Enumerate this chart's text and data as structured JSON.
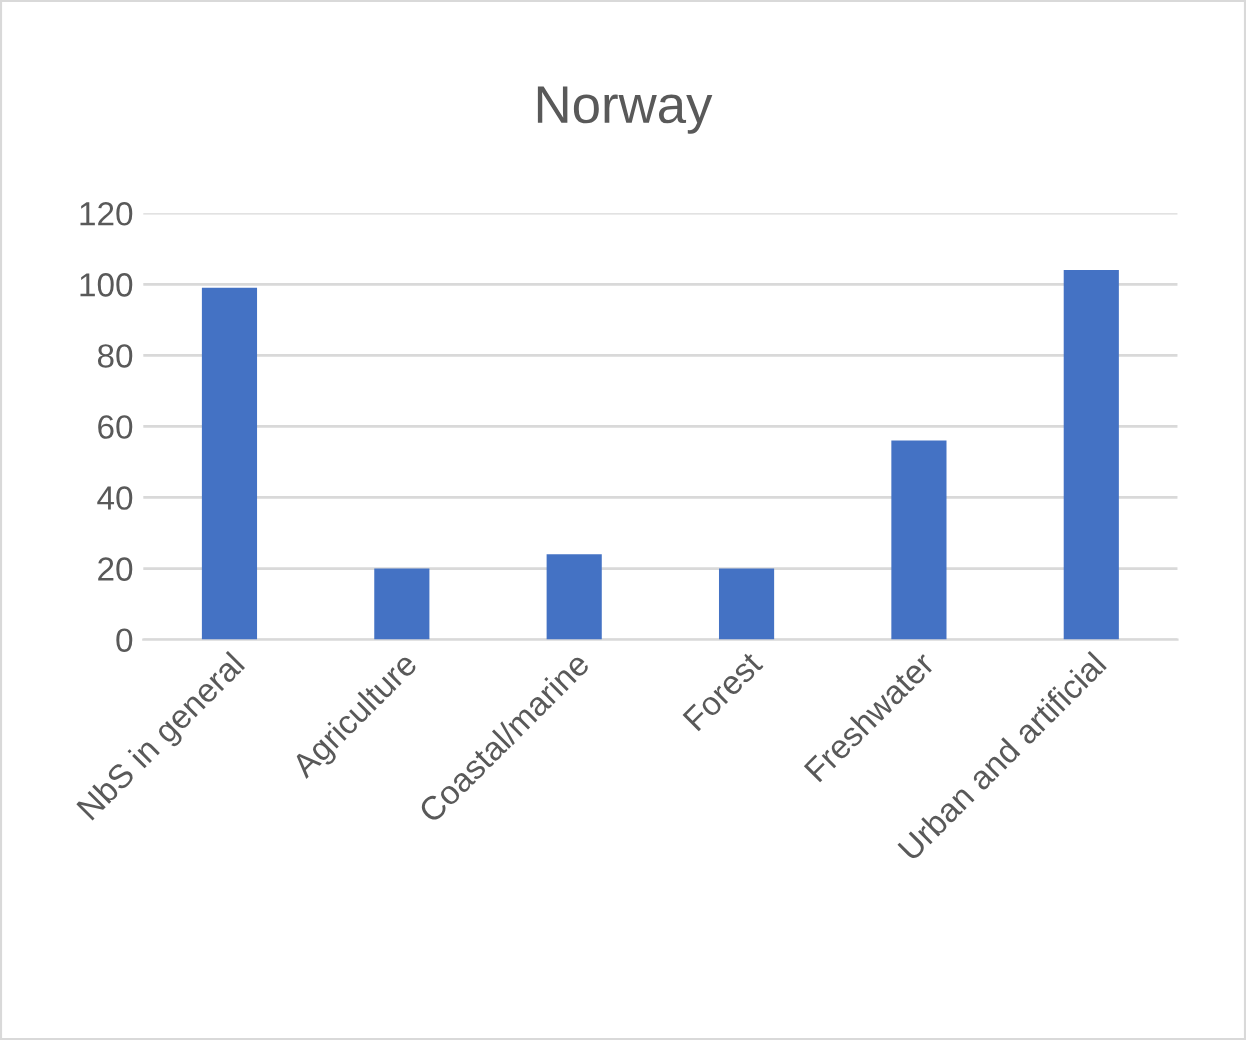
{
  "chart_data": {
    "type": "bar",
    "title": "Norway",
    "categories": [
      "NbS in general",
      "Agriculture",
      "Coastal/marine",
      "Forest",
      "Freshwater",
      "Urban and artificial"
    ],
    "values": [
      99,
      20,
      24,
      20,
      56,
      104
    ],
    "color": "#4472c4",
    "ylim": [
      0,
      120
    ],
    "yticks": [
      0,
      20,
      40,
      60,
      80,
      100,
      120
    ],
    "grid": "y",
    "legend": false
  }
}
